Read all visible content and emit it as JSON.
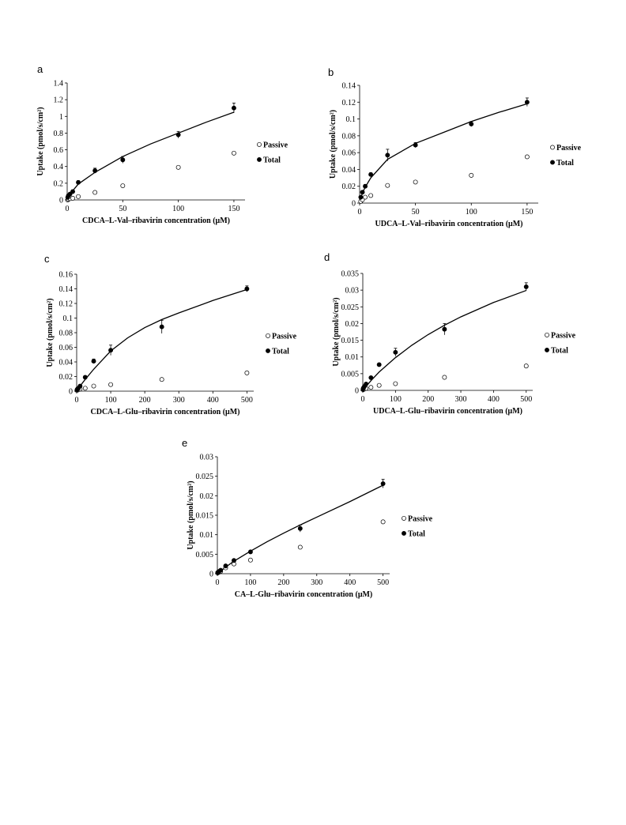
{
  "chart_data": [
    {
      "panel": "a",
      "type": "scatter",
      "xlabel": "CDCA–L-Val–ribavirin concentration (μM)",
      "ylabel": "Uptake (pmol/s/cm²)",
      "xlim": [
        0,
        160
      ],
      "ylim": [
        0,
        1.4
      ],
      "xticks": [
        "0",
        "50",
        "100",
        "150"
      ],
      "yticks": [
        "0",
        "0.2",
        "0.4",
        "0.6",
        "0.8",
        "1",
        "1.2",
        "1.4"
      ],
      "legend_position": "right",
      "series": [
        {
          "name": "Passive",
          "marker": "open-circle",
          "x": [
            0.5,
            1,
            2.5,
            5,
            10,
            25,
            50,
            100,
            150
          ],
          "y": [
            0.0,
            0.01,
            0.015,
            0.02,
            0.04,
            0.09,
            0.17,
            0.39,
            0.56
          ]
        },
        {
          "name": "Total",
          "marker": "filled-circle",
          "x": [
            0.5,
            1,
            2.5,
            5,
            10,
            25,
            50,
            100,
            150
          ],
          "y": [
            0.03,
            0.05,
            0.07,
            0.1,
            0.21,
            0.35,
            0.48,
            0.78,
            1.1
          ],
          "err": [
            0.01,
            0.01,
            0.01,
            0.02,
            0.02,
            0.03,
            0.04,
            0.04,
            0.06
          ]
        }
      ],
      "fit": {
        "x": [
          0,
          5,
          10,
          25,
          50,
          75,
          100,
          125,
          150
        ],
        "y": [
          0.0,
          0.11,
          0.19,
          0.33,
          0.52,
          0.67,
          0.8,
          0.93,
          1.05
        ]
      }
    },
    {
      "panel": "b",
      "type": "scatter",
      "xlabel": "UDCA–L-Val–ribavirin concentration (μM)",
      "ylabel": "Uptake (pmol/s/cm²)",
      "xlim": [
        0,
        160
      ],
      "ylim": [
        0,
        0.14
      ],
      "xticks": [
        "0",
        "50",
        "100",
        "150"
      ],
      "yticks": [
        "0",
        "0.02",
        "0.04",
        "0.06",
        "0.08",
        "0.1",
        "0.12",
        "0.14"
      ],
      "legend_position": "right",
      "series": [
        {
          "name": "Passive",
          "marker": "open-circle",
          "x": [
            1,
            2.5,
            5,
            10,
            25,
            50,
            100,
            150
          ],
          "y": [
            0.002,
            0.004,
            0.007,
            0.009,
            0.021,
            0.025,
            0.033,
            0.055
          ]
        },
        {
          "name": "Total",
          "marker": "filled-circle",
          "x": [
            1,
            2.5,
            5,
            10,
            25,
            50,
            100,
            150
          ],
          "y": [
            0.007,
            0.013,
            0.02,
            0.034,
            0.057,
            0.069,
            0.094,
            0.12
          ],
          "err": [
            0.001,
            0.001,
            0.002,
            0.002,
            0.007,
            0.003,
            0.003,
            0.005
          ]
        }
      ],
      "fit": {
        "x": [
          0,
          2.5,
          5,
          10,
          25,
          50,
          75,
          100,
          125,
          150
        ],
        "y": [
          0.0,
          0.012,
          0.019,
          0.03,
          0.052,
          0.071,
          0.084,
          0.097,
          0.108,
          0.118
        ]
      }
    },
    {
      "panel": "c",
      "type": "scatter",
      "xlabel": "CDCA–L-Glu–ribavirin concentration (μM)",
      "ylabel": "Uptake (pmol/s/cm²)",
      "xlim": [
        0,
        520
      ],
      "ylim": [
        0,
        0.16
      ],
      "xticks": [
        "0",
        "100",
        "200",
        "300",
        "400",
        "500"
      ],
      "yticks": [
        "0",
        "0.02",
        "0.04",
        "0.06",
        "0.08",
        "0.1",
        "0.12",
        "0.14",
        "0.16"
      ],
      "legend_position": "right",
      "series": [
        {
          "name": "Passive",
          "marker": "open-circle",
          "x": [
            1,
            2.5,
            5,
            10,
            25,
            50,
            100,
            250,
            500
          ],
          "y": [
            0.001,
            0.002,
            0.002,
            0.003,
            0.004,
            0.007,
            0.009,
            0.016,
            0.025
          ]
        },
        {
          "name": "Total",
          "marker": "filled-circle",
          "x": [
            1,
            2.5,
            5,
            10,
            25,
            50,
            100,
            250,
            500
          ],
          "y": [
            0.002,
            0.003,
            0.004,
            0.007,
            0.019,
            0.041,
            0.056,
            0.088,
            0.14
          ],
          "err": [
            0.001,
            0.001,
            0.001,
            0.001,
            0.002,
            0.003,
            0.007,
            0.009,
            0.004
          ]
        }
      ],
      "fit": {
        "x": [
          0,
          10,
          25,
          50,
          100,
          150,
          200,
          250,
          300,
          400,
          500
        ],
        "y": [
          0.0,
          0.007,
          0.016,
          0.03,
          0.055,
          0.073,
          0.087,
          0.098,
          0.107,
          0.124,
          0.139
        ]
      }
    },
    {
      "panel": "d",
      "type": "scatter",
      "xlabel": "UDCA–L-Glu–ribavirin concentration (μM)",
      "ylabel": "Uptake (pmol/s/cm²)",
      "xlim": [
        0,
        520
      ],
      "ylim": [
        0,
        0.035
      ],
      "xticks": [
        "0",
        "100",
        "200",
        "300",
        "400",
        "500"
      ],
      "yticks": [
        "0",
        "0.005",
        "0.01",
        "0.015",
        "0.02",
        "0.025",
        "0.03",
        "0.035"
      ],
      "legend_position": "right",
      "series": [
        {
          "name": "Passive",
          "marker": "open-circle",
          "x": [
            1,
            2.5,
            5,
            10,
            25,
            50,
            100,
            250,
            500
          ],
          "y": [
            0.0002,
            0.0003,
            0.0004,
            0.0006,
            0.0009,
            0.0015,
            0.002,
            0.0039,
            0.0073
          ]
        },
        {
          "name": "Total",
          "marker": "filled-circle",
          "x": [
            1,
            2.5,
            5,
            10,
            25,
            50,
            100,
            250,
            500
          ],
          "y": [
            0.0005,
            0.0008,
            0.0012,
            0.0019,
            0.0038,
            0.0077,
            0.0114,
            0.0183,
            0.031
          ],
          "err": [
            0.0001,
            0.0001,
            0.0002,
            0.0002,
            0.0003,
            0.0004,
            0.0012,
            0.0017,
            0.0012
          ]
        }
      ],
      "fit": {
        "x": [
          0,
          10,
          25,
          50,
          100,
          150,
          200,
          250,
          300,
          400,
          500
        ],
        "y": [
          0.0,
          0.0012,
          0.0029,
          0.0055,
          0.0098,
          0.0135,
          0.0167,
          0.0195,
          0.022,
          0.0263,
          0.0299
        ]
      }
    },
    {
      "panel": "e",
      "type": "scatter",
      "xlabel": "CA–L-Glu–ribavirin concentration (μM)",
      "ylabel": "Uptake (pmol/s/cm²)",
      "xlim": [
        0,
        520
      ],
      "ylim": [
        0,
        0.03
      ],
      "xticks": [
        "0",
        "100",
        "200",
        "300",
        "400",
        "500"
      ],
      "yticks": [
        "0",
        "0.005",
        "0.01",
        "0.015",
        "0.02",
        "0.025",
        "0.03"
      ],
      "legend_position": "right",
      "series": [
        {
          "name": "Passive",
          "marker": "open-circle",
          "x": [
            1,
            2.5,
            5,
            10,
            25,
            50,
            100,
            250,
            500
          ],
          "y": [
            0.0002,
            0.0003,
            0.0004,
            0.0006,
            0.0015,
            0.0025,
            0.0035,
            0.0068,
            0.0133
          ]
        },
        {
          "name": "Total",
          "marker": "filled-circle",
          "x": [
            1,
            2.5,
            5,
            10,
            25,
            50,
            100,
            250,
            500
          ],
          "y": [
            0.0003,
            0.0004,
            0.0006,
            0.0009,
            0.002,
            0.0034,
            0.0056,
            0.0116,
            0.0231
          ],
          "err": [
            0.0001,
            0.0001,
            0.0001,
            0.0001,
            0.0002,
            0.0003,
            0.0003,
            0.0009,
            0.0011
          ]
        }
      ],
      "fit": {
        "x": [
          0,
          25,
          50,
          100,
          150,
          200,
          250,
          300,
          400,
          500
        ],
        "y": [
          0.0,
          0.0017,
          0.0032,
          0.0058,
          0.0082,
          0.0104,
          0.0125,
          0.0145,
          0.0185,
          0.0227
        ]
      }
    }
  ]
}
